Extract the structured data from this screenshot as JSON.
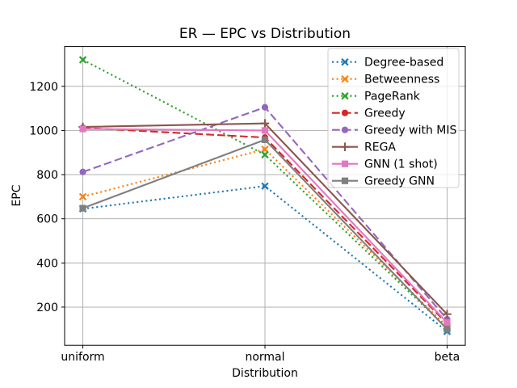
{
  "chart_data": {
    "type": "line",
    "title": "ER — EPC vs Distribution",
    "xlabel": "Distribution",
    "ylabel": "EPC",
    "categories": [
      "uniform",
      "normal",
      "beta"
    ],
    "yticks": [
      200,
      400,
      600,
      800,
      1000,
      1200
    ],
    "ylim": [
      27,
      1380
    ],
    "grid": true,
    "grid_color": "#b0b0b0",
    "legend_position": "upper right",
    "series": [
      {
        "name": "Degree-based",
        "color": "#1f77b4",
        "linestyle": "dotted",
        "marker": "x",
        "values": [
          645,
          748,
          90
        ]
      },
      {
        "name": "Betweenness",
        "color": "#ff7f0e",
        "linestyle": "dotted",
        "marker": "x",
        "values": [
          700,
          915,
          112
        ]
      },
      {
        "name": "PageRank",
        "color": "#2ca02c",
        "linestyle": "dotted",
        "marker": "x",
        "values": [
          1320,
          890,
          105
        ]
      },
      {
        "name": "Greedy",
        "color": "#d62728",
        "linestyle": "dashed",
        "marker": "circle",
        "values": [
          1012,
          968,
          125
        ]
      },
      {
        "name": "Greedy with MIS",
        "color": "#9467bd",
        "linestyle": "dashed",
        "marker": "circle",
        "values": [
          812,
          1105,
          145
        ]
      },
      {
        "name": "REGA",
        "color": "#8c564b",
        "linestyle": "solid",
        "marker": "plus",
        "values": [
          1016,
          1032,
          168
        ]
      },
      {
        "name": "GNN (1 shot)",
        "color": "#e377c2",
        "linestyle": "solid",
        "marker": "square",
        "values": [
          1007,
          1000,
          130
        ]
      },
      {
        "name": "Greedy GNN",
        "color": "#7f7f7f",
        "linestyle": "solid",
        "marker": "square",
        "values": [
          648,
          958,
          100
        ]
      }
    ]
  }
}
